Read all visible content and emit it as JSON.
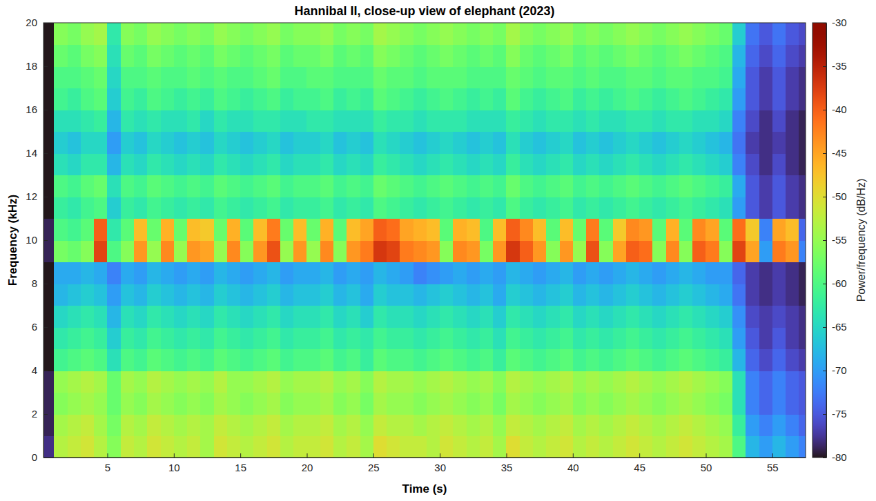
{
  "chart_data": {
    "type": "heatmap",
    "title": "Hannibal II, close-up view of elephant (2023)",
    "x_label": "Time (s)",
    "y_label": "Frequency (kHz)",
    "xlim": [
      0.2,
      57.5
    ],
    "xticks": [
      5,
      10,
      15,
      20,
      25,
      30,
      35,
      40,
      45,
      50,
      55
    ],
    "ylim": [
      0,
      20
    ],
    "yticks": [
      0,
      2,
      4,
      6,
      8,
      10,
      12,
      14,
      16,
      18,
      20
    ],
    "x_bins": [
      0.2,
      1,
      2,
      3,
      4,
      5,
      6,
      7,
      8,
      9,
      10,
      11,
      12,
      13,
      14,
      15,
      16,
      17,
      18,
      19,
      20,
      21,
      22,
      23,
      24,
      25,
      26,
      27,
      28,
      29,
      30,
      31,
      32,
      33,
      34,
      35,
      36,
      37,
      38,
      39,
      40,
      41,
      42,
      43,
      44,
      45,
      46,
      47,
      48,
      49,
      50,
      51,
      52,
      53,
      54,
      55,
      56,
      57,
      57.5
    ],
    "y_bins": [
      0,
      1,
      2,
      3,
      4,
      5,
      6,
      7,
      8,
      9,
      10,
      11,
      12,
      13,
      14,
      15,
      16,
      17,
      18,
      19,
      20
    ],
    "values": [
      [
        -78,
        -53,
        -52,
        -51,
        -53,
        -56,
        -52,
        -53,
        -51,
        -52,
        -53,
        -52,
        -54,
        -51,
        -52,
        -53,
        -52,
        -51,
        -53,
        -52,
        -52,
        -51,
        -53,
        -52,
        -54,
        -50,
        -51,
        -52,
        -52,
        -53,
        -51,
        -52,
        -53,
        -52,
        -54,
        -50,
        -52,
        -53,
        -52,
        -51,
        -53,
        -52,
        -53,
        -52,
        -51,
        -52,
        -53,
        -52,
        -51,
        -52,
        -53,
        -54,
        -60,
        -68,
        -70,
        -68,
        -70,
        -72
      ],
      [
        -79,
        -54,
        -53,
        -52,
        -54,
        -57,
        -53,
        -54,
        -52,
        -53,
        -54,
        -53,
        -54,
        -52,
        -53,
        -54,
        -53,
        -52,
        -54,
        -53,
        -53,
        -52,
        -54,
        -53,
        -55,
        -52,
        -53,
        -53,
        -54,
        -53,
        -52,
        -53,
        -54,
        -53,
        -55,
        -52,
        -53,
        -54,
        -53,
        -52,
        -54,
        -53,
        -54,
        -53,
        -52,
        -53,
        -54,
        -53,
        -52,
        -53,
        -54,
        -55,
        -62,
        -70,
        -72,
        -70,
        -72,
        -74
      ],
      [
        -79,
        -56,
        -55,
        -54,
        -55,
        -58,
        -55,
        -56,
        -54,
        -55,
        -56,
        -55,
        -56,
        -54,
        -55,
        -56,
        -55,
        -54,
        -56,
        -55,
        -55,
        -54,
        -56,
        -55,
        -57,
        -54,
        -55,
        -55,
        -56,
        -55,
        -54,
        -55,
        -56,
        -55,
        -57,
        -54,
        -55,
        -56,
        -55,
        -54,
        -56,
        -55,
        -56,
        -55,
        -54,
        -55,
        -56,
        -55,
        -54,
        -55,
        -56,
        -57,
        -64,
        -72,
        -74,
        -72,
        -74,
        -75
      ],
      [
        -79,
        -55,
        -54,
        -53,
        -54,
        -58,
        -54,
        -55,
        -53,
        -54,
        -55,
        -54,
        -55,
        -53,
        -55,
        -55,
        -54,
        -53,
        -55,
        -54,
        -54,
        -53,
        -55,
        -54,
        -56,
        -53,
        -54,
        -54,
        -55,
        -54,
        -53,
        -54,
        -55,
        -54,
        -56,
        -53,
        -54,
        -55,
        -54,
        -53,
        -55,
        -54,
        -55,
        -54,
        -53,
        -54,
        -55,
        -54,
        -53,
        -54,
        -55,
        -56,
        -64,
        -72,
        -74,
        -72,
        -74,
        -75
      ],
      [
        -80,
        -61,
        -60,
        -59,
        -60,
        -64,
        -60,
        -61,
        -59,
        -60,
        -61,
        -60,
        -61,
        -59,
        -60,
        -61,
        -60,
        -59,
        -61,
        -60,
        -60,
        -59,
        -61,
        -60,
        -62,
        -59,
        -60,
        -60,
        -61,
        -60,
        -59,
        -60,
        -61,
        -60,
        -62,
        -59,
        -60,
        -61,
        -60,
        -59,
        -61,
        -60,
        -61,
        -60,
        -59,
        -60,
        -61,
        -60,
        -59,
        -60,
        -61,
        -62,
        -68,
        -74,
        -76,
        -74,
        -76,
        -77
      ],
      [
        -80,
        -63,
        -62,
        -61,
        -62,
        -66,
        -62,
        -63,
        -61,
        -62,
        -63,
        -62,
        -63,
        -61,
        -62,
        -63,
        -62,
        -61,
        -63,
        -62,
        -62,
        -61,
        -63,
        -62,
        -63,
        -61,
        -62,
        -62,
        -63,
        -62,
        -61,
        -62,
        -63,
        -62,
        -64,
        -61,
        -62,
        -63,
        -62,
        -61,
        -63,
        -62,
        -63,
        -62,
        -61,
        -62,
        -63,
        -62,
        -61,
        -62,
        -63,
        -64,
        -70,
        -75,
        -77,
        -75,
        -77,
        -78
      ],
      [
        -80,
        -65,
        -64,
        -63,
        -64,
        -68,
        -64,
        -65,
        -63,
        -64,
        -65,
        -64,
        -65,
        -63,
        -64,
        -65,
        -64,
        -63,
        -65,
        -64,
        -64,
        -63,
        -65,
        -64,
        -66,
        -63,
        -64,
        -64,
        -65,
        -64,
        -63,
        -64,
        -65,
        -64,
        -66,
        -63,
        -64,
        -65,
        -64,
        -63,
        -65,
        -64,
        -65,
        -64,
        -63,
        -64,
        -65,
        -64,
        -63,
        -64,
        -65,
        -66,
        -71,
        -76,
        -77,
        -76,
        -77,
        -78
      ],
      [
        -80,
        -68,
        -67,
        -66,
        -67,
        -70,
        -67,
        -68,
        -66,
        -67,
        -68,
        -67,
        -68,
        -66,
        -67,
        -68,
        -67,
        -66,
        -68,
        -67,
        -67,
        -66,
        -68,
        -67,
        -69,
        -66,
        -67,
        -67,
        -68,
        -67,
        -66,
        -67,
        -68,
        -67,
        -69,
        -66,
        -67,
        -68,
        -67,
        -66,
        -68,
        -67,
        -68,
        -67,
        -66,
        -67,
        -68,
        -67,
        -66,
        -67,
        -68,
        -69,
        -73,
        -77,
        -78,
        -77,
        -78,
        -79
      ],
      [
        -80,
        -69,
        -69,
        -68,
        -69,
        -72,
        -69,
        -70,
        -68,
        -69,
        -70,
        -69,
        -70,
        -68,
        -69,
        -70,
        -69,
        -68,
        -70,
        -69,
        -69,
        -68,
        -70,
        -69,
        -70,
        -68,
        -69,
        -70,
        -72,
        -71,
        -70,
        -69,
        -70,
        -69,
        -70,
        -68,
        -69,
        -70,
        -69,
        -68,
        -70,
        -69,
        -70,
        -69,
        -68,
        -69,
        -70,
        -69,
        -68,
        -69,
        -70,
        -70,
        -74,
        -77,
        -78,
        -77,
        -78,
        -79
      ],
      [
        -79,
        -57,
        -58,
        -56,
        -38,
        -60,
        -56,
        -44,
        -55,
        -43,
        -55,
        -44,
        -45,
        -55,
        -43,
        -56,
        -44,
        -39,
        -55,
        -44,
        -55,
        -43,
        -56,
        -44,
        -42,
        -37,
        -38,
        -42,
        -43,
        -44,
        -56,
        -43,
        -44,
        -57,
        -44,
        -37,
        -40,
        -44,
        -56,
        -44,
        -55,
        -39,
        -56,
        -45,
        -40,
        -41,
        -56,
        -43,
        -56,
        -40,
        -42,
        -56,
        -38,
        -45,
        -70,
        -42,
        -44,
        -72
      ],
      [
        -79,
        -60,
        -61,
        -59,
        -40,
        -63,
        -59,
        -47,
        -58,
        -46,
        -58,
        -47,
        -48,
        -58,
        -46,
        -59,
        -47,
        -42,
        -58,
        -47,
        -58,
        -46,
        -59,
        -47,
        -45,
        -40,
        -41,
        -45,
        -46,
        -47,
        -59,
        -46,
        -47,
        -60,
        -47,
        -40,
        -43,
        -47,
        -59,
        -47,
        -58,
        -42,
        -59,
        -48,
        -43,
        -44,
        -59,
        -46,
        -59,
        -43,
        -45,
        -59,
        -41,
        -48,
        -72,
        -45,
        -47,
        -74
      ],
      [
        -80,
        -62,
        -63,
        -61,
        -60,
        -66,
        -62,
        -63,
        -61,
        -62,
        -63,
        -62,
        -63,
        -61,
        -62,
        -63,
        -62,
        -61,
        -63,
        -62,
        -62,
        -61,
        -63,
        -62,
        -63,
        -60,
        -61,
        -62,
        -63,
        -62,
        -61,
        -62,
        -63,
        -62,
        -63,
        -60,
        -62,
        -63,
        -62,
        -61,
        -63,
        -62,
        -63,
        -62,
        -61,
        -62,
        -63,
        -62,
        -61,
        -62,
        -63,
        -64,
        -70,
        -75,
        -77,
        -75,
        -77,
        -78
      ],
      [
        -80,
        -60,
        -61,
        -59,
        -58,
        -64,
        -60,
        -61,
        -59,
        -60,
        -61,
        -60,
        -61,
        -59,
        -60,
        -61,
        -60,
        -59,
        -61,
        -60,
        -60,
        -59,
        -61,
        -60,
        -61,
        -58,
        -59,
        -60,
        -61,
        -60,
        -59,
        -60,
        -61,
        -60,
        -61,
        -58,
        -60,
        -61,
        -60,
        -59,
        -61,
        -60,
        -61,
        -60,
        -59,
        -60,
        -61,
        -60,
        -59,
        -60,
        -61,
        -62,
        -69,
        -75,
        -77,
        -75,
        -77,
        -78
      ],
      [
        -80,
        -64,
        -65,
        -63,
        -63,
        -68,
        -64,
        -65,
        -63,
        -64,
        -65,
        -64,
        -65,
        -63,
        -64,
        -65,
        -64,
        -63,
        -65,
        -64,
        -64,
        -63,
        -65,
        -64,
        -65,
        -62,
        -63,
        -64,
        -65,
        -64,
        -63,
        -64,
        -65,
        -64,
        -65,
        -62,
        -64,
        -65,
        -64,
        -63,
        -65,
        -64,
        -65,
        -64,
        -63,
        -64,
        -65,
        -64,
        -63,
        -64,
        -65,
        -66,
        -72,
        -76,
        -78,
        -76,
        -78,
        -79
      ],
      [
        -80,
        -66,
        -67,
        -65,
        -65,
        -70,
        -66,
        -67,
        -65,
        -66,
        -67,
        -66,
        -67,
        -65,
        -66,
        -67,
        -66,
        -65,
        -67,
        -66,
        -66,
        -65,
        -67,
        -66,
        -67,
        -64,
        -65,
        -66,
        -67,
        -66,
        -65,
        -66,
        -67,
        -66,
        -67,
        -64,
        -66,
        -67,
        -66,
        -65,
        -67,
        -66,
        -67,
        -66,
        -65,
        -66,
        -67,
        -66,
        -65,
        -66,
        -67,
        -68,
        -73,
        -77,
        -78,
        -77,
        -78,
        -79
      ],
      [
        -80,
        -64,
        -64,
        -63,
        -62,
        -68,
        -63,
        -64,
        -63,
        -64,
        -64,
        -63,
        -65,
        -63,
        -64,
        -64,
        -63,
        -63,
        -64,
        -64,
        -63,
        -63,
        -64,
        -64,
        -64,
        -62,
        -63,
        -63,
        -64,
        -63,
        -63,
        -63,
        -64,
        -64,
        -64,
        -62,
        -63,
        -64,
        -63,
        -63,
        -64,
        -63,
        -64,
        -64,
        -63,
        -63,
        -64,
        -63,
        -63,
        -64,
        -64,
        -65,
        -72,
        -76,
        -78,
        -76,
        -78,
        -79
      ],
      [
        -80,
        -61,
        -62,
        -60,
        -59,
        -66,
        -61,
        -62,
        -60,
        -61,
        -62,
        -61,
        -62,
        -60,
        -61,
        -62,
        -61,
        -60,
        -62,
        -61,
        -61,
        -60,
        -62,
        -61,
        -62,
        -59,
        -60,
        -61,
        -62,
        -61,
        -60,
        -61,
        -62,
        -61,
        -62,
        -59,
        -61,
        -62,
        -61,
        -60,
        -62,
        -61,
        -62,
        -61,
        -60,
        -61,
        -62,
        -61,
        -60,
        -61,
        -62,
        -63,
        -70,
        -75,
        -77,
        -75,
        -77,
        -78
      ],
      [
        -80,
        -60,
        -60,
        -59,
        -58,
        -65,
        -60,
        -60,
        -59,
        -60,
        -60,
        -59,
        -60,
        -59,
        -60,
        -60,
        -59,
        -58,
        -60,
        -60,
        -59,
        -59,
        -60,
        -60,
        -60,
        -58,
        -59,
        -59,
        -60,
        -59,
        -59,
        -59,
        -60,
        -60,
        -60,
        -58,
        -59,
        -60,
        -59,
        -59,
        -60,
        -59,
        -60,
        -60,
        -59,
        -59,
        -60,
        -59,
        -59,
        -60,
        -60,
        -61,
        -69,
        -75,
        -77,
        -75,
        -77,
        -78
      ],
      [
        -80,
        -58,
        -59,
        -57,
        -56,
        -64,
        -58,
        -59,
        -57,
        -58,
        -59,
        -58,
        -59,
        -57,
        -58,
        -59,
        -58,
        -57,
        -59,
        -58,
        -58,
        -57,
        -59,
        -58,
        -59,
        -56,
        -57,
        -58,
        -59,
        -58,
        -57,
        -58,
        -59,
        -58,
        -59,
        -56,
        -58,
        -59,
        -58,
        -57,
        -59,
        -58,
        -59,
        -58,
        -57,
        -58,
        -59,
        -58,
        -57,
        -58,
        -59,
        -60,
        -68,
        -74,
        -76,
        -74,
        -76,
        -77
      ],
      [
        -80,
        -56,
        -57,
        -55,
        -54,
        -63,
        -56,
        -57,
        -55,
        -56,
        -57,
        -56,
        -57,
        -55,
        -56,
        -57,
        -56,
        -55,
        -57,
        -56,
        -56,
        -55,
        -57,
        -56,
        -57,
        -54,
        -55,
        -56,
        -57,
        -56,
        -55,
        -56,
        -57,
        -56,
        -57,
        -54,
        -56,
        -57,
        -56,
        -55,
        -57,
        -56,
        -57,
        -56,
        -55,
        -56,
        -57,
        -56,
        -55,
        -56,
        -57,
        -58,
        -66,
        -73,
        -75,
        -73,
        -75,
        -76
      ]
    ],
    "colorbar": {
      "label": "Power/frequency (dB/Hz)",
      "range": [
        -80,
        -30
      ],
      "ticks": [
        -30,
        -35,
        -40,
        -45,
        -50,
        -55,
        -60,
        -65,
        -70,
        -75,
        -80
      ]
    }
  }
}
